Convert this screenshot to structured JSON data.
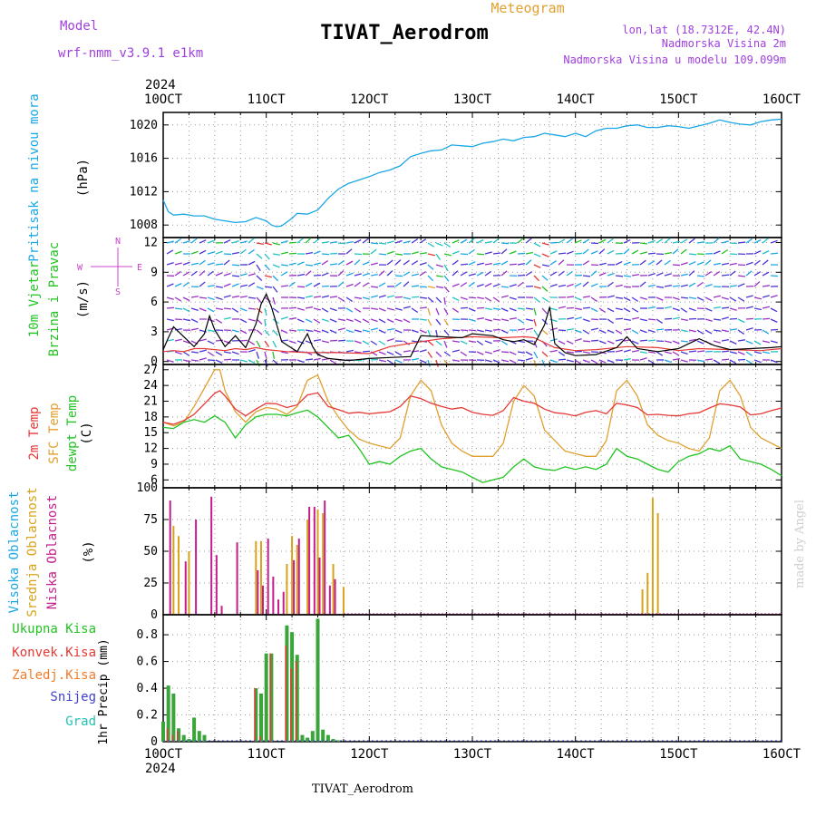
{
  "header": {
    "model_label": "Model",
    "model_value": "wrf-nmm_v3.9.1 e1km",
    "main_title": "TIVAT_Aerodrom",
    "meteogram_label": "Meteogram",
    "info_lines": [
      "lon,lat (18.7312E, 42.4N)",
      "Nadmorska Visina 2m",
      "Nadmorska Visina u modelu 109.099m"
    ],
    "year_top": "2024",
    "year_bottom": "2024",
    "footer_title": "TIVAT_Aerodrom",
    "credit": "made by Angel"
  },
  "colors": {
    "pressure": "#1aa7e6",
    "temp2m": "#e53935",
    "sfc": "#e0a030",
    "dew": "#22c322",
    "high_cloud": "#1aa7e6",
    "mid_cloud": "#d9a21a",
    "low_cloud": "#c41d8c",
    "total_precip": "#3aa63a",
    "conv_precip": "#e53935",
    "freezing": "#f07c2a",
    "snow": "#4040d0",
    "graupel": "#22c3b0",
    "wind_speed": "#000000",
    "wind_gust": "#e53935",
    "compass": "#cc44cc",
    "header_purple": "#a040e0",
    "meteogram_orange": "#e0a030",
    "grid": "#9a9a9a"
  },
  "x_axis": {
    "tick_labels": [
      "10OCT",
      "11OCT",
      "12OCT",
      "13OCT",
      "14OCT",
      "15OCT",
      "16OCT"
    ],
    "start_day": 10,
    "end_day": 16
  },
  "panels": {
    "pressure": {
      "ylabel_lines": [
        "Pritisak na nivou mora",
        "(hPa)"
      ],
      "ticks": [
        "1020",
        "1016",
        "1012",
        "1008"
      ]
    },
    "wind": {
      "ylabel_lines": [
        "10m Vjetar",
        "Brzina i Pravac",
        "(m/s)"
      ],
      "ticks": [
        "12",
        "9",
        "6",
        "3",
        "0"
      ],
      "compass": {
        "n": "N",
        "s": "S",
        "e": "E",
        "w": "W"
      }
    },
    "temp": {
      "ylabel_lines": [
        "2m Temp",
        "SFC Temp",
        "dewpt Temp",
        "(C)"
      ],
      "ticks": [
        "27",
        "24",
        "21",
        "18",
        "15",
        "12",
        "9",
        "6"
      ]
    },
    "cloud": {
      "ylabel_lines": [
        "Visoka Oblacnost",
        "Srednja Oblacnost",
        "Niska Oblacnost",
        "(%)"
      ],
      "ticks": [
        "100",
        "75",
        "50",
        "25",
        "0"
      ]
    },
    "precip": {
      "legend": [
        "Ukupna Kisa",
        "Konvek.Kisa",
        "Zaledj.Kisa",
        "Snijeg",
        "Grad"
      ],
      "ylabel": "1hr Precip (mm)",
      "ticks": [
        "0.8",
        "0.6",
        "0.4",
        "0.2",
        "0"
      ]
    }
  },
  "chart_data": [
    {
      "type": "line",
      "x_unit": "day of October 2024",
      "ylim": [
        1006.5,
        1021.5
      ],
      "series": [
        {
          "name": "Pritisak na nivou mora",
          "x": [
            10.0,
            10.05,
            10.1,
            10.2,
            10.3,
            10.4,
            10.5,
            10.6,
            10.7,
            10.8,
            10.9,
            11.0,
            11.05,
            11.1,
            11.15,
            11.25,
            11.3,
            11.4,
            11.5,
            11.6,
            11.7,
            11.8,
            11.9,
            12.0,
            12.1,
            12.2,
            12.3,
            12.4,
            12.5,
            12.6,
            12.7,
            12.8,
            12.9,
            13.0,
            13.1,
            13.2,
            13.3,
            13.4,
            13.5,
            13.6,
            13.7,
            13.8,
            13.9,
            14.0,
            14.1,
            14.2,
            14.3,
            14.4,
            14.5,
            14.6,
            14.7,
            14.8,
            14.9,
            15.0,
            15.1,
            15.2,
            15.3,
            15.4,
            15.5,
            15.6,
            15.7,
            15.8,
            15.9,
            16.0
          ],
          "y": [
            1011.0,
            1009.6,
            1009.2,
            1009.3,
            1009.1,
            1009.1,
            1008.7,
            1008.5,
            1008.3,
            1008.4,
            1008.9,
            1008.5,
            1008.0,
            1007.8,
            1007.9,
            1008.8,
            1009.4,
            1009.3,
            1009.8,
            1011.2,
            1012.3,
            1013.0,
            1013.4,
            1013.8,
            1014.3,
            1014.6,
            1015.1,
            1016.2,
            1016.6,
            1016.9,
            1017.0,
            1017.6,
            1017.5,
            1017.4,
            1017.8,
            1018.0,
            1018.3,
            1018.1,
            1018.5,
            1018.6,
            1019.0,
            1018.8,
            1018.6,
            1019.0,
            1018.6,
            1019.3,
            1019.6,
            1019.6,
            1019.9,
            1020.0,
            1019.7,
            1019.7,
            1019.9,
            1019.8,
            1019.6,
            1019.9,
            1020.2,
            1020.6,
            1020.3,
            1020.1,
            1020.0,
            1020.4,
            1020.6,
            1020.7
          ]
        }
      ]
    },
    {
      "type": "line",
      "x_unit": "day of October 2024",
      "ylim": [
        -0.3,
        12.5
      ],
      "series": [
        {
          "name": "wind_speed",
          "x": [
            10.0,
            10.05,
            10.1,
            10.2,
            10.3,
            10.4,
            10.45,
            10.5,
            10.6,
            10.7,
            10.8,
            10.9,
            10.95,
            11.0,
            11.05,
            11.15,
            11.3,
            11.4,
            11.45,
            11.5,
            11.6,
            11.7,
            11.8,
            11.9,
            12.0,
            12.2,
            12.4,
            12.5,
            12.7,
            12.9,
            13.0,
            13.2,
            13.3,
            13.4,
            13.5,
            13.6,
            13.7,
            13.75,
            13.8,
            13.9,
            14.0,
            14.2,
            14.4,
            14.5,
            14.6,
            14.8,
            15.0,
            15.2,
            15.35,
            15.5,
            15.7,
            15.9,
            16.0
          ],
          "y": [
            1.2,
            2.4,
            3.5,
            2.5,
            1.5,
            2.8,
            4.6,
            3.2,
            1.5,
            2.6,
            1.4,
            3.8,
            5.8,
            6.8,
            5.5,
            2.0,
            1.0,
            2.8,
            1.5,
            0.7,
            0.3,
            0.2,
            0.1,
            0.2,
            0.3,
            0.4,
            0.5,
            2.6,
            2.5,
            2.4,
            2.8,
            2.6,
            2.2,
            2.0,
            2.2,
            1.7,
            3.7,
            5.5,
            1.8,
            0.9,
            0.6,
            0.7,
            1.4,
            2.5,
            1.3,
            1.0,
            1.3,
            2.3,
            1.6,
            1.2,
            1.3,
            1.4,
            1.5
          ]
        },
        {
          "name": "wind_gust",
          "x": [
            10.0,
            10.1,
            10.2,
            10.3,
            10.4,
            10.5,
            10.6,
            10.7,
            10.8,
            10.9,
            11.0,
            11.2,
            11.4,
            11.7,
            12.0,
            12.2,
            12.5,
            12.7,
            13.0,
            13.3,
            13.5,
            13.6,
            13.8,
            14.0,
            14.2,
            14.5,
            14.8,
            15.0,
            15.2,
            15.5,
            15.8,
            16.0
          ],
          "y": [
            1.0,
            1.1,
            1.0,
            1.3,
            1.3,
            1.2,
            1.1,
            1.3,
            1.2,
            1.4,
            1.2,
            1.0,
            0.9,
            0.9,
            0.8,
            1.5,
            2.0,
            2.3,
            2.5,
            2.4,
            2.5,
            2.4,
            1.4,
            1.1,
            1.2,
            1.5,
            1.4,
            1.1,
            1.3,
            1.2,
            1.1,
            1.3
          ]
        }
      ]
    },
    {
      "type": "line",
      "x_unit": "day of October 2024",
      "ylim": [
        4.5,
        28
      ],
      "series": [
        {
          "name": "2m Temp",
          "x": [
            10.0,
            10.1,
            10.2,
            10.3,
            10.4,
            10.5,
            10.55,
            10.6,
            10.7,
            10.8,
            10.9,
            11.0,
            11.1,
            11.2,
            11.3,
            11.4,
            11.5,
            11.6,
            11.7,
            11.8,
            11.9,
            12.0,
            12.1,
            12.2,
            12.3,
            12.4,
            12.5,
            12.6,
            12.7,
            12.8,
            12.9,
            13.0,
            13.1,
            13.2,
            13.3,
            13.4,
            13.5,
            13.6,
            13.7,
            13.8,
            13.9,
            14.0,
            14.1,
            14.2,
            14.3,
            14.4,
            14.5,
            14.6,
            14.7,
            14.8,
            14.9,
            15.0,
            15.1,
            15.2,
            15.3,
            15.4,
            15.5,
            15.6,
            15.7,
            15.8,
            15.9,
            16.0
          ],
          "y": [
            17.0,
            16.6,
            17.3,
            18.5,
            20.5,
            22.5,
            23.0,
            22.0,
            19.5,
            18.2,
            19.5,
            20.6,
            20.5,
            19.8,
            20.3,
            22.2,
            22.6,
            20.0,
            19.4,
            18.7,
            18.9,
            18.6,
            18.8,
            19.0,
            20.0,
            22.0,
            21.5,
            20.6,
            20.0,
            19.5,
            19.8,
            18.9,
            18.5,
            18.3,
            19.2,
            21.7,
            21.0,
            20.6,
            19.5,
            18.8,
            18.6,
            18.2,
            18.9,
            19.2,
            18.6,
            20.6,
            20.3,
            19.8,
            18.4,
            18.5,
            18.3,
            18.2,
            18.6,
            18.8,
            19.7,
            20.5,
            20.3,
            19.9,
            18.4,
            18.6,
            19.2,
            19.7
          ]
        },
        {
          "name": "SFC Temp",
          "x": [
            10.0,
            10.1,
            10.2,
            10.3,
            10.4,
            10.5,
            10.55,
            10.6,
            10.7,
            10.8,
            10.9,
            11.0,
            11.1,
            11.2,
            11.3,
            11.4,
            11.5,
            11.6,
            11.7,
            11.8,
            11.9,
            12.0,
            12.1,
            12.2,
            12.3,
            12.4,
            12.5,
            12.6,
            12.7,
            12.8,
            12.9,
            13.0,
            13.1,
            13.2,
            13.3,
            13.4,
            13.5,
            13.6,
            13.7,
            13.8,
            13.9,
            14.0,
            14.1,
            14.2,
            14.3,
            14.4,
            14.5,
            14.6,
            14.7,
            14.8,
            14.9,
            15.0,
            15.1,
            15.2,
            15.3,
            15.4,
            15.5,
            15.6,
            15.7,
            15.8,
            15.9,
            16.0
          ],
          "y": [
            17.0,
            16.3,
            17.0,
            20.0,
            23.5,
            27.0,
            27.0,
            23.0,
            19.0,
            17.0,
            19.0,
            19.8,
            19.5,
            18.5,
            20.0,
            25.0,
            26.0,
            21.0,
            18.0,
            15.5,
            13.8,
            13.0,
            12.5,
            12.0,
            14.0,
            22.0,
            25.0,
            23.0,
            16.5,
            13.0,
            11.5,
            10.5,
            10.5,
            10.5,
            13.0,
            21.0,
            24.0,
            22.0,
            15.5,
            13.5,
            11.5,
            11.0,
            10.5,
            10.5,
            13.5,
            23.0,
            25.0,
            22.0,
            16.5,
            14.5,
            13.5,
            13.0,
            12.0,
            11.5,
            14.0,
            23.0,
            25.0,
            22.0,
            16.0,
            14.0,
            13.0,
            12.0
          ]
        },
        {
          "name": "dewpt Temp",
          "x": [
            10.0,
            10.1,
            10.2,
            10.3,
            10.4,
            10.5,
            10.6,
            10.7,
            10.8,
            10.9,
            11.0,
            11.1,
            11.2,
            11.3,
            11.4,
            11.5,
            11.6,
            11.7,
            11.8,
            11.9,
            12.0,
            12.1,
            12.2,
            12.3,
            12.4,
            12.5,
            12.6,
            12.7,
            12.8,
            12.9,
            13.0,
            13.1,
            13.2,
            13.3,
            13.4,
            13.5,
            13.6,
            13.7,
            13.8,
            13.9,
            14.0,
            14.1,
            14.2,
            14.3,
            14.4,
            14.5,
            14.6,
            14.7,
            14.8,
            14.9,
            15.0,
            15.1,
            15.2,
            15.3,
            15.4,
            15.5,
            15.6,
            15.7,
            15.8,
            15.9,
            16.0
          ],
          "y": [
            16.0,
            15.8,
            17.0,
            17.5,
            17.0,
            18.2,
            17.0,
            14.0,
            16.5,
            18.0,
            18.5,
            18.5,
            18.2,
            18.8,
            19.3,
            18.0,
            16.0,
            14.0,
            14.5,
            12.0,
            9.0,
            9.5,
            9.0,
            10.5,
            11.5,
            12.0,
            10.0,
            8.5,
            8.0,
            7.5,
            6.5,
            5.5,
            6.0,
            6.5,
            8.5,
            10.0,
            8.5,
            8.0,
            7.8,
            8.5,
            8.0,
            8.5,
            8.0,
            9.0,
            12.0,
            10.5,
            10.0,
            9.0,
            8.0,
            7.5,
            9.5,
            10.5,
            11.0,
            12.0,
            11.5,
            12.5,
            10.0,
            9.5,
            9.0,
            8.0,
            6.8
          ]
        }
      ]
    },
    {
      "type": "bar",
      "x_unit": "day of October 2024",
      "ylim": [
        0,
        100
      ],
      "series": [
        {
          "name": "Visoka Oblacnost",
          "x": [],
          "y": []
        },
        {
          "name": "Srednja Oblacnost",
          "x": [
            10.1,
            10.15,
            10.25,
            10.9,
            10.95,
            11.2,
            11.25,
            11.3,
            11.4,
            11.5,
            11.55,
            11.65,
            11.75,
            14.65,
            14.7,
            14.75,
            14.8
          ],
          "y": [
            70,
            62,
            50,
            58,
            58,
            40,
            62,
            55,
            75,
            83,
            80,
            40,
            22,
            20,
            33,
            92,
            80
          ]
        },
        {
          "name": "Niska Oblacnost",
          "x": [
            10.05,
            10.2,
            10.3,
            10.45,
            10.5,
            10.55,
            10.7,
            10.9,
            10.95,
            11.0,
            11.05,
            11.1,
            11.15,
            11.25,
            11.3,
            11.4,
            11.45,
            11.5,
            11.55,
            11.6,
            11.65
          ],
          "y": [
            90,
            42,
            75,
            93,
            47,
            7,
            57,
            35,
            23,
            60,
            30,
            12,
            18,
            43,
            60,
            85,
            85,
            45,
            90,
            23,
            28
          ]
        }
      ]
    },
    {
      "type": "bar",
      "x_unit": "day of October 2024",
      "ylim": [
        0,
        0.95
      ],
      "series": [
        {
          "name": "Ukupna Kisa",
          "x": [
            10.0,
            10.05,
            10.1,
            10.15,
            10.2,
            10.25,
            10.3,
            10.35,
            10.4,
            10.9,
            10.95,
            11.0,
            11.05,
            11.2,
            11.25,
            11.3,
            11.35,
            11.4,
            11.45,
            11.5,
            11.55,
            11.6,
            11.65,
            11.7
          ],
          "y": [
            0.15,
            0.42,
            0.36,
            0.1,
            0.05,
            0.02,
            0.18,
            0.08,
            0.05,
            0.4,
            0.36,
            0.66,
            0.66,
            0.87,
            0.82,
            0.65,
            0.05,
            0.03,
            0.08,
            0.92,
            0.09,
            0.05,
            0.02,
            0.01
          ]
        },
        {
          "name": "Konvek.Kisa",
          "x": [
            10.05,
            10.1,
            10.15,
            10.9,
            10.95,
            11.05,
            11.2,
            11.25,
            11.3
          ],
          "y": [
            0.1,
            0.05,
            0.08,
            0.4,
            0.04,
            0.66,
            0.72,
            0.55,
            0.6
          ]
        },
        {
          "name": "Zaledj.Kisa",
          "x": [],
          "y": []
        },
        {
          "name": "Snijeg",
          "x": [],
          "y": []
        },
        {
          "name": "Grad",
          "x": [],
          "y": []
        }
      ]
    }
  ]
}
